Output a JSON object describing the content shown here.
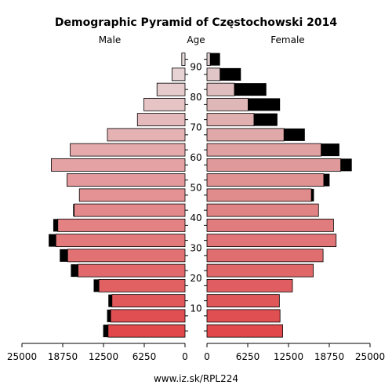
{
  "chart_data": {
    "type": "bar",
    "orientation": "horizontal-pyramid",
    "title": "Demographic Pyramid of Częstochowski 2014",
    "left_label": "Male",
    "center_label": "Age",
    "right_label": "Female",
    "footer": "www.iz.sk/RPL224",
    "age_ticks": [
      "10",
      "20",
      "30",
      "40",
      "50",
      "60",
      "70",
      "80",
      "90"
    ],
    "x_ticks_left": [
      "25000",
      "18750",
      "12500",
      "6250",
      "0"
    ],
    "x_ticks_right": [
      "0",
      "6250",
      "12500",
      "18750",
      "25000"
    ],
    "xlim": [
      0,
      25000
    ],
    "age_groups": [
      "0-4",
      "5-9",
      "10-14",
      "15-19",
      "20-24",
      "25-29",
      "30-34",
      "35-39",
      "40-44",
      "45-49",
      "50-54",
      "55-59",
      "60-64",
      "65-69",
      "70-74",
      "75-79",
      "80-84",
      "85-89",
      "90+"
    ],
    "series": [
      {
        "name": "Male",
        "values": [
          11800,
          11400,
          11200,
          13200,
          16400,
          18000,
          19800,
          19500,
          17000,
          16200,
          18100,
          20500,
          17600,
          11900,
          7300,
          6300,
          4300,
          2000,
          500
        ]
      },
      {
        "name": "Male extra",
        "values": [
          750,
          550,
          550,
          800,
          1100,
          1200,
          1100,
          700,
          150,
          0,
          0,
          0,
          0,
          0,
          0,
          0,
          0,
          0,
          0
        ]
      },
      {
        "name": "Female",
        "values": [
          11600,
          11200,
          11100,
          13100,
          16300,
          17800,
          19800,
          19400,
          17100,
          16000,
          17900,
          20500,
          17500,
          11800,
          7200,
          6300,
          4200,
          2000,
          500
        ]
      },
      {
        "name": "Female extra",
        "values": [
          0,
          0,
          0,
          0,
          0,
          0,
          0,
          0,
          0,
          400,
          900,
          1700,
          2800,
          3200,
          3600,
          4900,
          4900,
          3200,
          1500
        ]
      }
    ],
    "colors": {
      "male_base": "#e0484b",
      "male_top": "#e7dbdc",
      "female_base": "#e0484b",
      "female_top": "#e0cdcd",
      "excess": "#000000",
      "outline": "#000000"
    },
    "grid": false,
    "legend": "none"
  }
}
